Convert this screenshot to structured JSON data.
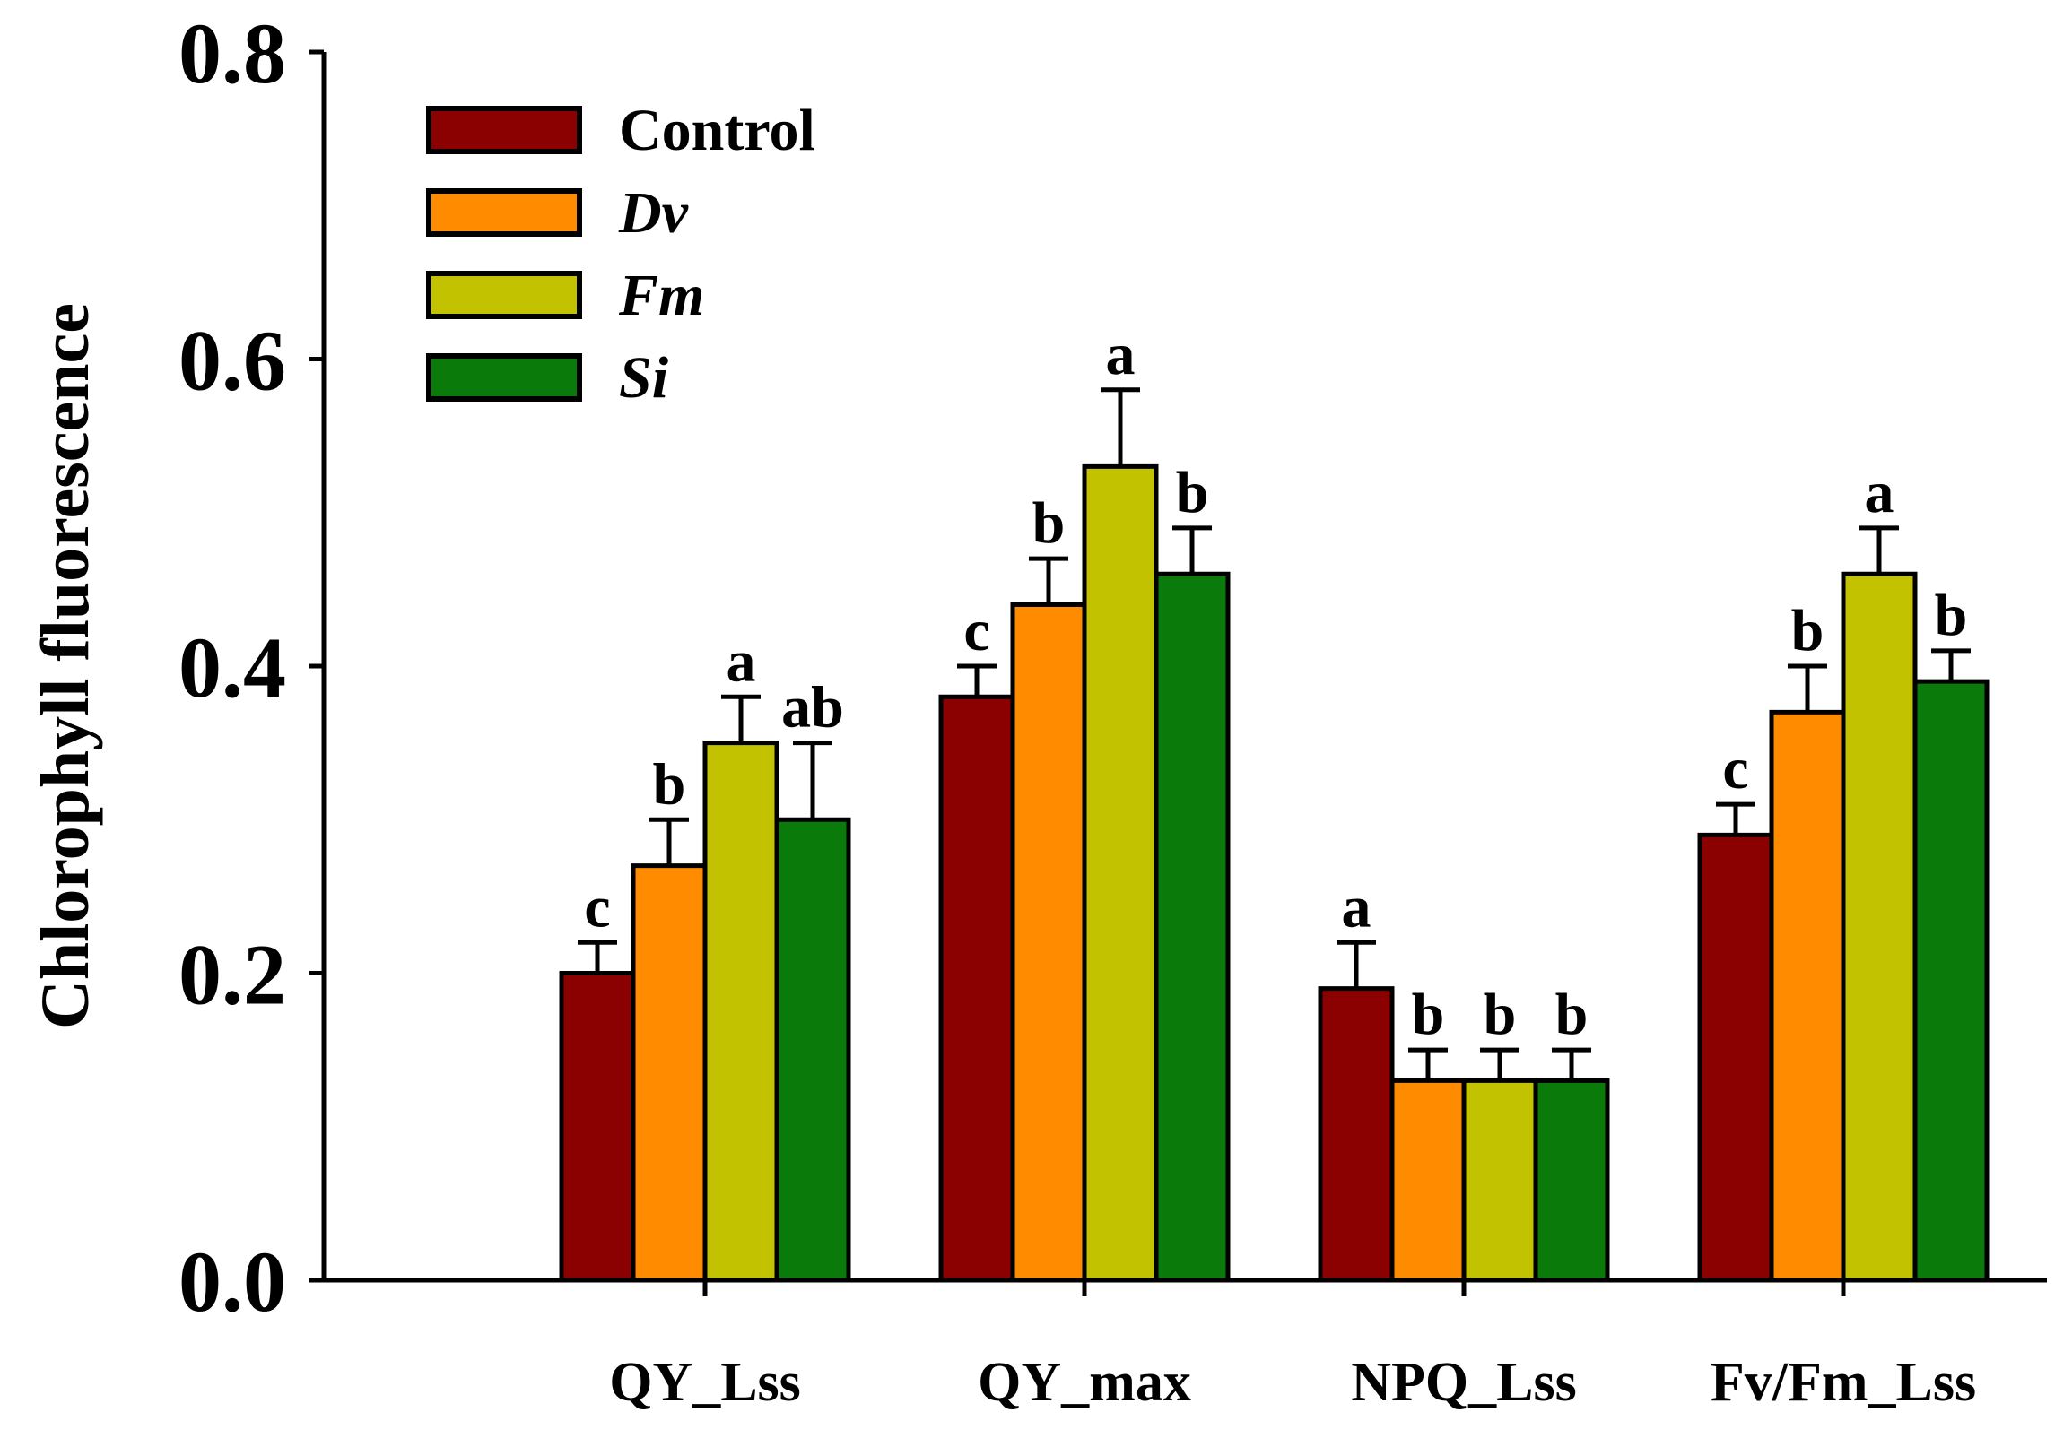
{
  "chart_data": {
    "type": "bar",
    "title": "",
    "xlabel": "",
    "ylabel": "Chlorophyll fluorescence",
    "ylim": [
      0.0,
      0.8
    ],
    "yticks": [
      "0.0",
      "0.2",
      "0.4",
      "0.6",
      "0.8"
    ],
    "categories": [
      "QY_Lss",
      "QY_max",
      "NPQ_Lss",
      "Fv/Fm_Lss"
    ],
    "legend_position": "top-left",
    "series": [
      {
        "name": "Control",
        "italic": false,
        "color": "#8b0000",
        "values": [
          0.2,
          0.38,
          0.19,
          0.29
        ],
        "errors": [
          0.02,
          0.02,
          0.03,
          0.02
        ],
        "letters": [
          "c",
          "c",
          "a",
          "c"
        ]
      },
      {
        "name": "Dv",
        "italic": true,
        "color": "#ff8c00",
        "values": [
          0.27,
          0.44,
          0.13,
          0.37
        ],
        "errors": [
          0.03,
          0.03,
          0.02,
          0.03
        ],
        "letters": [
          "b",
          "b",
          "b",
          "b"
        ]
      },
      {
        "name": "Fm",
        "italic": true,
        "color": "#c2c200",
        "values": [
          0.35,
          0.53,
          0.13,
          0.46
        ],
        "errors": [
          0.03,
          0.05,
          0.02,
          0.03
        ],
        "letters": [
          "a",
          "a",
          "b",
          "a"
        ]
      },
      {
        "name": "Si",
        "italic": true,
        "color": "#0a7a0a",
        "values": [
          0.3,
          0.46,
          0.13,
          0.39
        ],
        "errors": [
          0.05,
          0.03,
          0.02,
          0.02
        ],
        "letters": [
          "ab",
          "b",
          "b",
          "b"
        ]
      }
    ]
  }
}
